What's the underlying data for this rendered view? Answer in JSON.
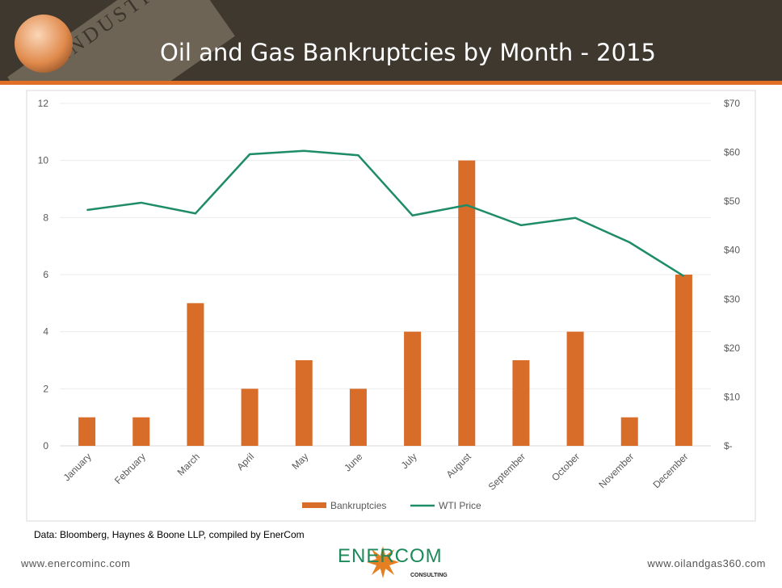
{
  "header": {
    "title": "Oil and Gas Bankruptcies by Month - 2015",
    "banner_text": "INDUSTRY"
  },
  "source": "Data: Bloomberg, Haynes & Boone LLP, compiled by EnerCom",
  "footer": {
    "left": "www.enercominc.com",
    "right": "www.oilandgas360.com",
    "logo_text": "ENERCOM",
    "logo_sub": "CONSULTING"
  },
  "chart_data": {
    "type": "bar",
    "title": "Oil and Gas Bankruptcies by Month - 2015",
    "categories": [
      "January",
      "February",
      "March",
      "April",
      "May",
      "June",
      "July",
      "August",
      "September",
      "October",
      "November",
      "December"
    ],
    "series": [
      {
        "name": "Bankruptcies",
        "type": "bar",
        "axis": "left",
        "color": "#d86c29",
        "values": [
          1,
          1,
          5,
          2,
          3,
          2,
          4,
          10,
          3,
          4,
          1,
          6
        ]
      },
      {
        "name": "WTI Price",
        "type": "line",
        "axis": "right",
        "color": "#1e8c68",
        "values": [
          48.2,
          49.7,
          47.5,
          59.6,
          60.3,
          59.4,
          47.1,
          49.2,
          45.1,
          46.6,
          41.6,
          34.7
        ]
      }
    ],
    "y_left": {
      "ylim": [
        0,
        12
      ],
      "ticks": [
        "0",
        "2",
        "4",
        "6",
        "8",
        "10",
        "12"
      ]
    },
    "y_right": {
      "ylim": [
        0,
        70
      ],
      "ticks": [
        "$-",
        "$10",
        "$20",
        "$30",
        "$40",
        "$50",
        "$60",
        "$70"
      ]
    },
    "grid": true,
    "legend": "bottom"
  }
}
